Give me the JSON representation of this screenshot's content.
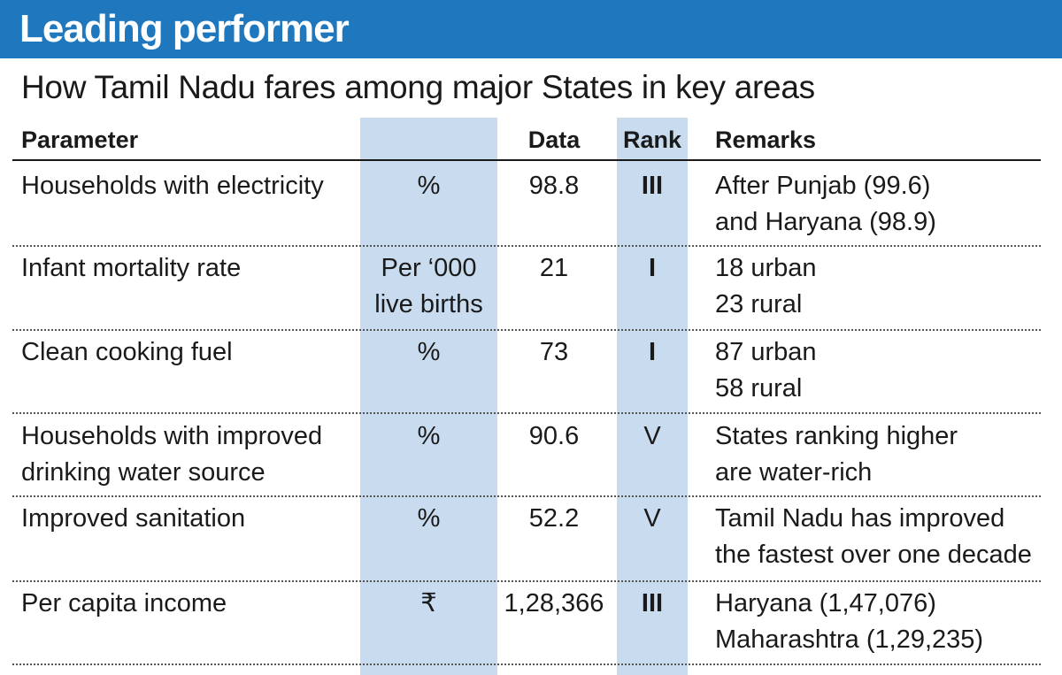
{
  "title": "Leading performer",
  "subtitle": "How Tamil Nadu fares among major States in key areas",
  "headers": {
    "parameter": "Parameter",
    "unit": "",
    "data": "Data",
    "rank": "Rank",
    "remarks": "Remarks"
  },
  "rows": [
    {
      "parameter": "Households with electricity",
      "unit": "%",
      "data": "98.8",
      "rank": "III",
      "remarks": "After Punjab (99.6)\nand Haryana (98.9)"
    },
    {
      "parameter": "Infant mortality rate",
      "unit": "Per ‘000\nlive births",
      "data": "21",
      "rank": "I",
      "remarks": "18 urban\n23 rural"
    },
    {
      "parameter": "Clean cooking fuel",
      "unit": "%",
      "data": "73",
      "rank": "I",
      "remarks": "87 urban\n58 rural"
    },
    {
      "parameter": "Households with improved\ndrinking water source",
      "unit": "%",
      "data": "90.6",
      "rank": "V",
      "remarks": "States ranking higher\nare water-rich"
    },
    {
      "parameter": "Improved sanitation",
      "unit": "%",
      "data": "52.2",
      "rank": "V",
      "remarks": "Tamil Nadu has improved\nthe fastest over one decade"
    },
    {
      "parameter": "Per capita income",
      "unit": "₹",
      "data": "1,28,366",
      "rank": "III",
      "remarks": "Haryana (1,47,076)\nMaharashtra (1,29,235)"
    }
  ]
}
